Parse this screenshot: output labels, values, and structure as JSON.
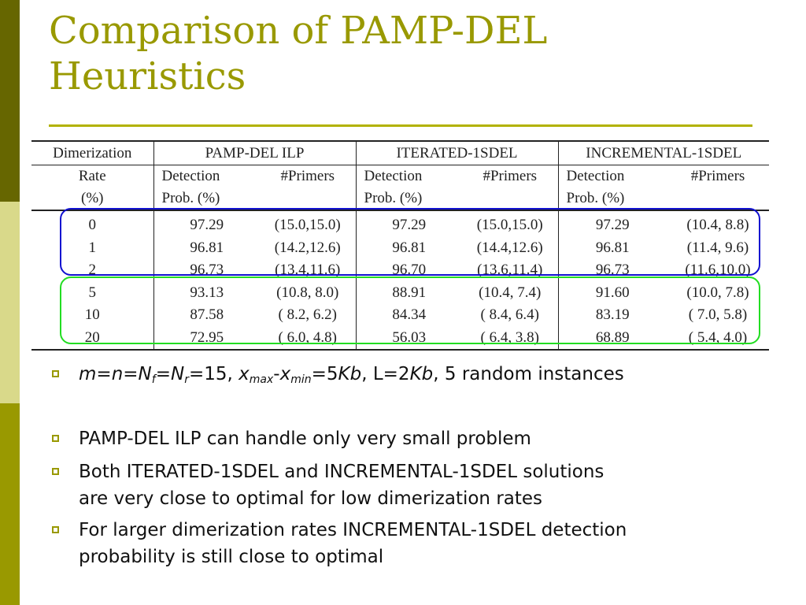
{
  "slide": {
    "title_line1": "Comparison of PAMP-DEL",
    "title_line2": "Heuristics",
    "accent_color": "#999900"
  },
  "table": {
    "header_row1": [
      "Dimerization",
      "PAMP-DEL ILP",
      "ITERATED-1SDEL",
      "INCREMENTAL-1SDEL"
    ],
    "header_row2": [
      "Rate",
      "Detection",
      "#Primers",
      "Detection",
      "#Primers",
      "Detection",
      "#Primers"
    ],
    "header_row3": [
      "(%)",
      "Prob. (%)",
      "Prob. (%)",
      "Prob. (%)"
    ],
    "rows": [
      [
        "0",
        "97.29",
        "(15.0,15.0)",
        "97.29",
        "(15.0,15.0)",
        "97.29",
        "(10.4, 8.8)"
      ],
      [
        "1",
        "96.81",
        "(14.2,12.6)",
        "96.81",
        "(14.4,12.6)",
        "96.81",
        "(11.4, 9.6)"
      ],
      [
        "2",
        "96.73",
        "(13.4,11.6)",
        "96.70",
        "(13.6,11.4)",
        "96.73",
        "(11.6,10.0)"
      ],
      [
        "5",
        "93.13",
        "(10.8, 8.0)",
        "88.91",
        "(10.4, 7.4)",
        "91.60",
        "(10.0, 7.8)"
      ],
      [
        "10",
        "87.58",
        "( 8.2, 6.2)",
        "84.34",
        "( 8.4, 6.4)",
        "83.19",
        "( 7.0, 5.8)"
      ],
      [
        "20",
        "72.95",
        "( 6.0, 4.8)",
        "56.03",
        "( 6.4, 3.8)",
        "68.89",
        "( 5.4, 4.0)"
      ]
    ],
    "group_colors": {
      "low_rates": "#1010d0",
      "high_rates": "#22dd22"
    }
  },
  "bullets": {
    "b1_parts": {
      "m": "m",
      "eq1": "=",
      "n": "n",
      "eq2": "=",
      "N1": "N",
      "f": "f",
      "eq3": "=",
      "N2": "N",
      "r": "r",
      "eq4": "=15, ",
      "x1": "x",
      "max": "max",
      "dash": "-",
      "x2": "x",
      "min": "min",
      "eq5": "=5",
      "Kb1": "Kb",
      "mid": ", L=2",
      "Kb2": "Kb",
      "tail": ", 5 random instances"
    },
    "b2": "PAMP-DEL ILP can handle only very small problem",
    "b3_line1": "Both ITERATED-1SDEL and INCREMENTAL-1SDEL solutions",
    "b3_line2": "are very close to optimal for low dimerization rates",
    "b4_line1": "For larger dimerization rates INCREMENTAL-1SDEL detection",
    "b4_line2": "probability is still close to optimal"
  }
}
